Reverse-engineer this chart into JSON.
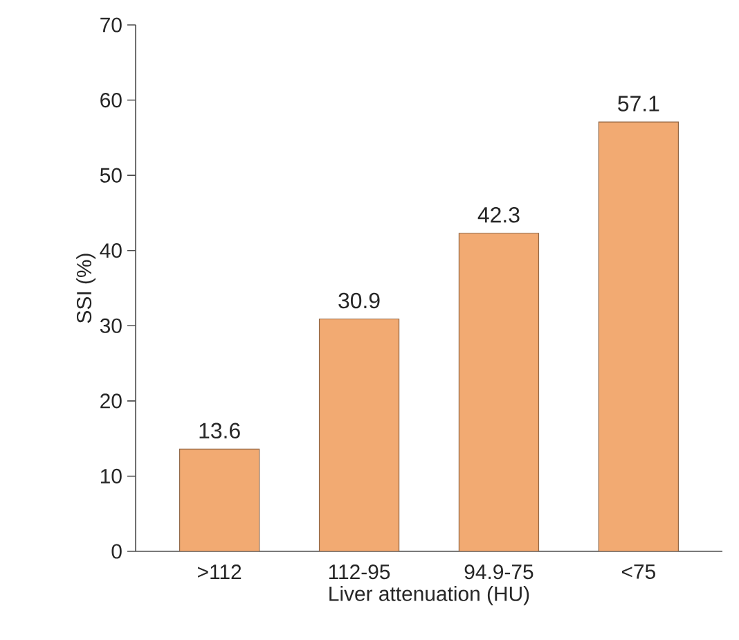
{
  "chart_data": {
    "type": "bar",
    "xlabel": "Liver attenuation (HU)",
    "ylabel": "SSI (%)",
    "categories": [
      ">112",
      "112-95",
      "94.9-75",
      "<75"
    ],
    "values": [
      13.6,
      30.9,
      42.3,
      57.1
    ],
    "color": "#f2aa72",
    "ylim": [
      0,
      70
    ],
    "yticks": [
      0,
      10,
      20,
      30,
      40,
      50,
      60,
      70
    ],
    "data_labels": true,
    "grid": false
  }
}
